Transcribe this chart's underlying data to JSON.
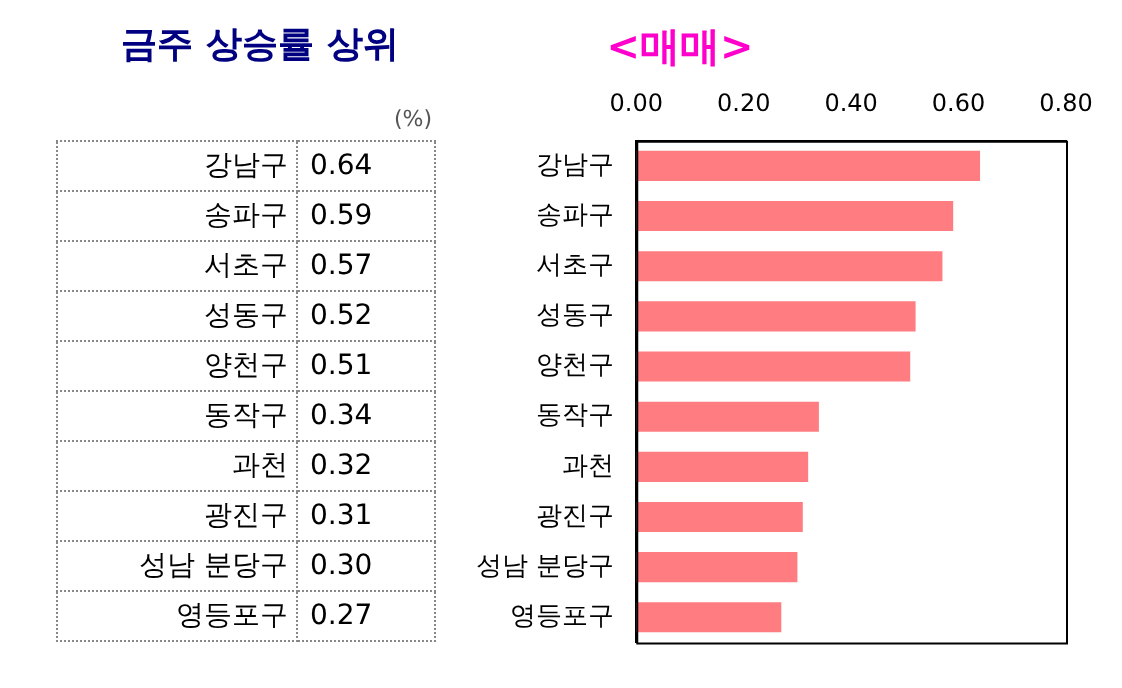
{
  "chart_data": {
    "type": "bar",
    "orientation": "horizontal",
    "title": "금주 상승률 상위",
    "subtitle": "<매매>",
    "annotations": [
      "(%)"
    ],
    "categories": [
      "강남구",
      "송파구",
      "서초구",
      "성동구",
      "양천구",
      "동작구",
      "과천",
      "광진구",
      "성남 분당구",
      "영등포구"
    ],
    "values": [
      0.64,
      0.59,
      0.57,
      0.52,
      0.51,
      0.34,
      0.32,
      0.31,
      0.3,
      0.27
    ],
    "value_labels": [
      "0.64",
      "0.59",
      "0.57",
      "0.52",
      "0.51",
      "0.34",
      "0.32",
      "0.31",
      "0.30",
      "0.27"
    ],
    "color": "#ff7c80",
    "xlim": [
      0,
      0.8
    ],
    "xticks": [
      {
        "value": 0,
        "label": "0.00"
      },
      {
        "value": 0.2,
        "label": "0.20"
      },
      {
        "value": 0.4,
        "label": "0.40"
      },
      {
        "value": 0.6,
        "label": "0.60"
      },
      {
        "value": 0.8,
        "label": "0.80"
      }
    ],
    "grid": false
  }
}
